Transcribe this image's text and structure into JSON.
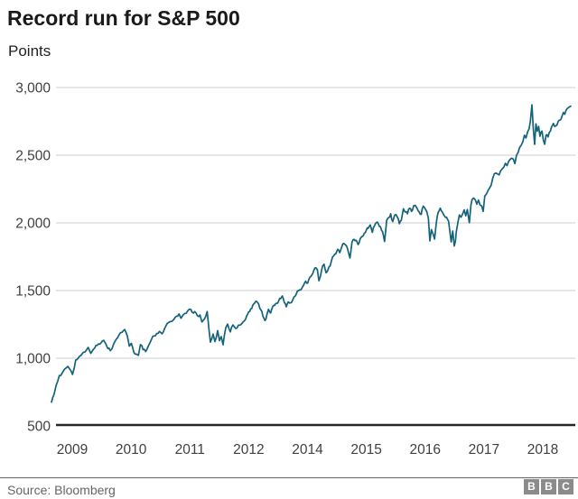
{
  "header": {
    "title": "Record run for S&P 500",
    "subtitle": "Points"
  },
  "footer": {
    "source": "Source: Bloomberg",
    "logo_letters": [
      "B",
      "B",
      "C"
    ]
  },
  "colors": {
    "line": "#15627b",
    "grid": "#cccccc",
    "axis": "#262626",
    "tick_text": "#404040",
    "title_text": "#1a1a1a",
    "divider": "#666666",
    "logo_bg": "#8b8b8b"
  },
  "chart_data": {
    "type": "line",
    "title": "Record run for S&P 500",
    "ylabel": "Points",
    "xlabel": "",
    "legend": "none",
    "grid": "horizontal",
    "y_range": [
      500,
      3000
    ],
    "x_range_years": [
      2009.17,
      2018.65
    ],
    "y_ticks": [
      {
        "value": 3000,
        "label": "3,000"
      },
      {
        "value": 2500,
        "label": "2,500"
      },
      {
        "value": 2000,
        "label": "2,000"
      },
      {
        "value": 1500,
        "label": "1,500"
      },
      {
        "value": 1000,
        "label": "1,000"
      },
      {
        "value": 500,
        "label": "500"
      }
    ],
    "x_tick_labels": [
      "2009",
      "2010",
      "2011",
      "2012",
      "2014",
      "2015",
      "2016",
      "2017",
      "2018"
    ],
    "series": [
      {
        "name": "S&P 500 index points",
        "points": [
          [
            2009.17,
            676
          ],
          [
            2009.21,
            735
          ],
          [
            2009.24,
            798
          ],
          [
            2009.29,
            872
          ],
          [
            2009.33,
            888
          ],
          [
            2009.37,
            919
          ],
          [
            2009.42,
            940
          ],
          [
            2009.45,
            919
          ],
          [
            2009.49,
            880
          ],
          [
            2009.52,
            930
          ],
          [
            2009.54,
            987
          ],
          [
            2009.58,
            1002
          ],
          [
            2009.62,
            1020
          ],
          [
            2009.66,
            1045
          ],
          [
            2009.7,
            1057
          ],
          [
            2009.73,
            1080
          ],
          [
            2009.77,
            1036
          ],
          [
            2009.81,
            1066
          ],
          [
            2009.85,
            1095
          ],
          [
            2009.89,
            1106
          ],
          [
            2009.93,
            1115
          ],
          [
            2009.97,
            1132
          ],
          [
            2010.03,
            1073
          ],
          [
            2010.07,
            1056
          ],
          [
            2010.12,
            1104
          ],
          [
            2010.16,
            1140
          ],
          [
            2010.2,
            1169
          ],
          [
            2010.25,
            1192
          ],
          [
            2010.29,
            1212
          ],
          [
            2010.33,
            1165
          ],
          [
            2010.36,
            1089
          ],
          [
            2010.39,
            1110
          ],
          [
            2010.43,
            1042
          ],
          [
            2010.47,
            1030
          ],
          [
            2010.5,
            1022
          ],
          [
            2010.53,
            1101
          ],
          [
            2010.57,
            1064
          ],
          [
            2010.61,
            1049
          ],
          [
            2010.65,
            1090
          ],
          [
            2010.7,
            1141
          ],
          [
            2010.74,
            1165
          ],
          [
            2010.78,
            1183
          ],
          [
            2010.82,
            1198
          ],
          [
            2010.86,
            1180
          ],
          [
            2010.9,
            1221
          ],
          [
            2010.94,
            1257
          ],
          [
            2010.98,
            1270
          ],
          [
            2011.04,
            1286
          ],
          [
            2011.08,
            1310
          ],
          [
            2011.12,
            1327
          ],
          [
            2011.15,
            1296
          ],
          [
            2011.19,
            1325
          ],
          [
            2011.23,
            1332
          ],
          [
            2011.28,
            1363
          ],
          [
            2011.32,
            1340
          ],
          [
            2011.36,
            1345
          ],
          [
            2011.4,
            1314
          ],
          [
            2011.44,
            1320
          ],
          [
            2011.47,
            1268
          ],
          [
            2011.51,
            1292
          ],
          [
            2011.55,
            1345
          ],
          [
            2011.58,
            1200
          ],
          [
            2011.6,
            1119
          ],
          [
            2011.63,
            1178
          ],
          [
            2011.65,
            1123
          ],
          [
            2011.68,
            1204
          ],
          [
            2011.7,
            1131
          ],
          [
            2011.72,
            1160
          ],
          [
            2011.74,
            1099
          ],
          [
            2011.77,
            1225
          ],
          [
            2011.79,
            1253
          ],
          [
            2011.82,
            1195
          ],
          [
            2011.85,
            1246
          ],
          [
            2011.88,
            1220
          ],
          [
            2011.91,
            1244
          ],
          [
            2011.95,
            1257
          ],
          [
            2012.0,
            1277
          ],
          [
            2012.04,
            1312
          ],
          [
            2012.08,
            1342
          ],
          [
            2012.12,
            1365
          ],
          [
            2012.16,
            1390
          ],
          [
            2012.2,
            1408
          ],
          [
            2012.24,
            1419
          ],
          [
            2012.28,
            1397
          ],
          [
            2012.32,
            1357
          ],
          [
            2012.36,
            1310
          ],
          [
            2012.4,
            1278
          ],
          [
            2012.44,
            1325
          ],
          [
            2012.47,
            1362
          ],
          [
            2012.51,
            1334
          ],
          [
            2012.55,
            1379
          ],
          [
            2012.59,
            1390
          ],
          [
            2012.63,
            1406
          ],
          [
            2012.67,
            1425
          ],
          [
            2012.71,
            1440
          ],
          [
            2012.74,
            1460
          ],
          [
            2012.78,
            1412
          ],
          [
            2012.82,
            1380
          ],
          [
            2012.86,
            1416
          ],
          [
            2012.9,
            1409
          ],
          [
            2012.94,
            1426
          ],
          [
            2013.0,
            1462
          ],
          [
            2013.04,
            1498
          ],
          [
            2013.08,
            1505
          ],
          [
            2013.12,
            1514
          ],
          [
            2013.16,
            1540
          ],
          [
            2013.2,
            1569
          ],
          [
            2013.24,
            1555
          ],
          [
            2013.28,
            1597
          ],
          [
            2013.32,
            1614
          ],
          [
            2013.36,
            1650
          ],
          [
            2013.4,
            1669
          ],
          [
            2013.43,
            1655
          ],
          [
            2013.46,
            1573
          ],
          [
            2013.49,
            1606
          ],
          [
            2013.53,
            1680
          ],
          [
            2013.56,
            1695
          ],
          [
            2013.6,
            1632
          ],
          [
            2013.64,
            1655
          ],
          [
            2013.68,
            1681
          ],
          [
            2013.71,
            1725
          ],
          [
            2013.75,
            1756
          ],
          [
            2013.79,
            1770
          ],
          [
            2013.83,
            1805
          ],
          [
            2013.87,
            1780
          ],
          [
            2013.91,
            1825
          ],
          [
            2013.95,
            1848
          ],
          [
            2014.0,
            1831
          ],
          [
            2014.04,
            1782
          ],
          [
            2014.07,
            1741
          ],
          [
            2014.11,
            1859
          ],
          [
            2014.15,
            1878
          ],
          [
            2014.19,
            1872
          ],
          [
            2014.23,
            1840
          ],
          [
            2014.27,
            1883
          ],
          [
            2014.31,
            1900
          ],
          [
            2014.35,
            1923
          ],
          [
            2014.39,
            1945
          ],
          [
            2014.43,
            1960
          ],
          [
            2014.47,
            1985
          ],
          [
            2014.51,
            1930
          ],
          [
            2014.55,
            1978
          ],
          [
            2014.59,
            2003
          ],
          [
            2014.63,
            1990
          ],
          [
            2014.67,
            1972
          ],
          [
            2014.71,
            1935
          ],
          [
            2014.75,
            1862
          ],
          [
            2014.79,
            2018
          ],
          [
            2014.83,
            2040
          ],
          [
            2014.87,
            2067
          ],
          [
            2014.91,
            2010
          ],
          [
            2014.95,
            2058
          ],
          [
            2015.0,
            2044
          ],
          [
            2015.04,
            1994
          ],
          [
            2015.08,
            2020
          ],
          [
            2015.12,
            2104
          ],
          [
            2015.16,
            2080
          ],
          [
            2015.2,
            2067
          ],
          [
            2015.24,
            2108
          ],
          [
            2015.28,
            2085
          ],
          [
            2015.32,
            2126
          ],
          [
            2015.35,
            2130
          ],
          [
            2015.39,
            2107
          ],
          [
            2015.43,
            2080
          ],
          [
            2015.47,
            2063
          ],
          [
            2015.51,
            2124
          ],
          [
            2015.55,
            2103
          ],
          [
            2015.58,
            2083
          ],
          [
            2015.61,
            2035
          ],
          [
            2015.64,
            1867
          ],
          [
            2015.67,
            1950
          ],
          [
            2015.7,
            1920
          ],
          [
            2015.73,
            1881
          ],
          [
            2015.76,
            1988
          ],
          [
            2015.8,
            2079
          ],
          [
            2015.84,
            2109
          ],
          [
            2015.88,
            2080
          ],
          [
            2015.92,
            2052
          ],
          [
            2015.96,
            2043
          ],
          [
            2016.0,
            2012
          ],
          [
            2016.03,
            1922
          ],
          [
            2016.05,
            1859
          ],
          [
            2016.08,
            1940
          ],
          [
            2016.11,
            1829
          ],
          [
            2016.14,
            1865
          ],
          [
            2016.16,
            1932
          ],
          [
            2016.2,
            1999
          ],
          [
            2016.24,
            2059
          ],
          [
            2016.28,
            2041
          ],
          [
            2016.32,
            2065
          ],
          [
            2016.36,
            2096
          ],
          [
            2016.4,
            2052
          ],
          [
            2016.44,
            2099
          ],
          [
            2016.47,
            2037
          ],
          [
            2016.49,
            2001
          ],
          [
            2016.53,
            2129
          ],
          [
            2016.56,
            2173
          ],
          [
            2016.6,
            2184
          ],
          [
            2016.64,
            2170
          ],
          [
            2016.68,
            2139
          ],
          [
            2016.72,
            2168
          ],
          [
            2016.76,
            2133
          ],
          [
            2016.8,
            2126
          ],
          [
            2016.84,
            2085
          ],
          [
            2016.88,
            2198
          ],
          [
            2016.92,
            2212
          ],
          [
            2016.96,
            2238
          ],
          [
            2017.0,
            2258
          ],
          [
            2017.04,
            2278
          ],
          [
            2017.08,
            2330
          ],
          [
            2017.12,
            2363
          ],
          [
            2017.16,
            2368
          ],
          [
            2017.2,
            2362
          ],
          [
            2017.24,
            2355
          ],
          [
            2017.28,
            2384
          ],
          [
            2017.32,
            2399
          ],
          [
            2017.36,
            2411
          ],
          [
            2017.4,
            2440
          ],
          [
            2017.44,
            2423
          ],
          [
            2017.48,
            2453
          ],
          [
            2017.52,
            2470
          ],
          [
            2017.56,
            2478
          ],
          [
            2017.6,
            2471
          ],
          [
            2017.64,
            2438
          ],
          [
            2017.68,
            2500
          ],
          [
            2017.72,
            2519
          ],
          [
            2017.76,
            2557
          ],
          [
            2017.8,
            2575
          ],
          [
            2017.84,
            2599
          ],
          [
            2017.88,
            2647
          ],
          [
            2017.92,
            2627
          ],
          [
            2017.96,
            2673
          ],
          [
            2018.0,
            2696
          ],
          [
            2018.03,
            2750
          ],
          [
            2018.05,
            2810
          ],
          [
            2018.07,
            2872
          ],
          [
            2018.09,
            2695
          ],
          [
            2018.11,
            2581
          ],
          [
            2018.13,
            2732
          ],
          [
            2018.15,
            2677
          ],
          [
            2018.17,
            2713
          ],
          [
            2018.19,
            2640
          ],
          [
            2018.22,
            2678
          ],
          [
            2018.24,
            2613
          ],
          [
            2018.26,
            2581
          ],
          [
            2018.28,
            2648
          ],
          [
            2018.31,
            2635
          ],
          [
            2018.33,
            2670
          ],
          [
            2018.36,
            2705
          ],
          [
            2018.39,
            2735
          ],
          [
            2018.41,
            2712
          ],
          [
            2018.43,
            2718
          ],
          [
            2018.46,
            2747
          ],
          [
            2018.49,
            2760
          ],
          [
            2018.52,
            2790
          ],
          [
            2018.54,
            2816
          ],
          [
            2018.56,
            2802
          ],
          [
            2018.58,
            2833
          ],
          [
            2018.61,
            2850
          ],
          [
            2018.63,
            2857
          ],
          [
            2018.65,
            2862
          ]
        ]
      }
    ],
    "source": "Bloomberg"
  }
}
